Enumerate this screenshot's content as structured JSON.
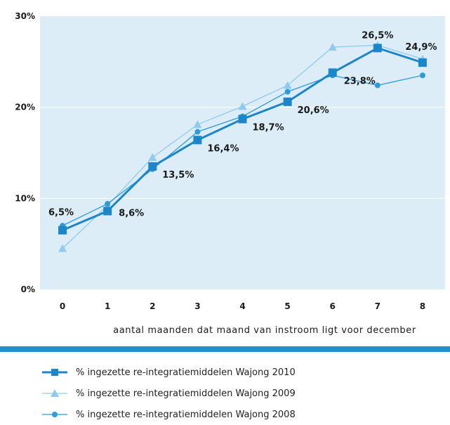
{
  "chart_data": {
    "type": "line",
    "xlabel": "aantal maanden dat maand van instroom ligt voor december",
    "ylabel": "",
    "x": [
      0,
      1,
      2,
      3,
      4,
      5,
      6,
      7,
      8
    ],
    "xlim": [
      -0.5,
      8.5
    ],
    "ylim": [
      0,
      30
    ],
    "y_ticks": [
      "0%",
      "10%",
      "20%",
      "30%"
    ],
    "grid": true,
    "series": [
      {
        "name": "% ingezette re-integratiemiddelen Wajong 2010",
        "values": [
          6.5,
          8.6,
          13.5,
          16.4,
          18.7,
          20.6,
          23.8,
          26.5,
          24.9
        ],
        "data_labels": [
          "6,5%",
          "8,6%",
          "13,5%",
          "16,4%",
          "18,7%",
          "20,6%",
          "23,8%",
          "26,5%",
          "24,9%"
        ],
        "color": "#1b86c9",
        "marker": "square"
      },
      {
        "name": "% ingezette re-integratiemiddelen Wajong 2009",
        "values": [
          4.5,
          9.2,
          14.5,
          18.1,
          20.1,
          22.4,
          26.6,
          26.8,
          25.3
        ],
        "color": "#8ecbee",
        "marker": "triangle"
      },
      {
        "name": "% ingezette re-integratiemiddelen Wajong 2008",
        "values": [
          7.0,
          9.4,
          13.2,
          17.3,
          19.0,
          21.7,
          23.5,
          22.4,
          23.5
        ],
        "color": "#2f9ad8",
        "marker": "circle"
      }
    ]
  },
  "colors": {
    "plot_background": "#dcedf8",
    "gridline": "#ffffff",
    "divider": "#1e8fd1"
  }
}
